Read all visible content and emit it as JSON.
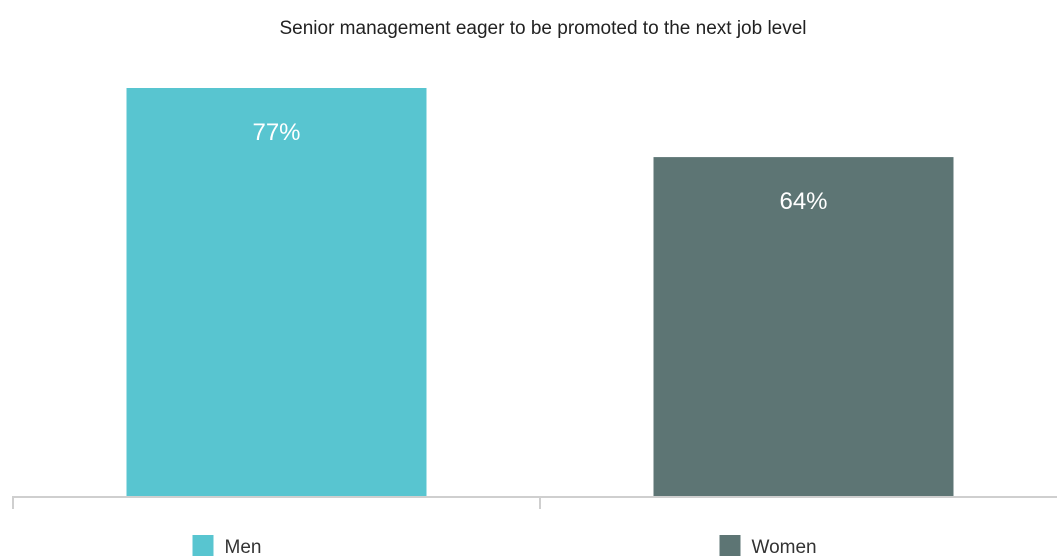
{
  "chart_data": {
    "type": "bar",
    "title": "Senior management eager to be promoted to the next job level",
    "categories": [
      "Men",
      "Women"
    ],
    "values": [
      77,
      64
    ],
    "data_labels": [
      "77%",
      "64%"
    ],
    "colors": [
      "#58c5d0",
      "#5d7574"
    ],
    "ylim": [
      0,
      80
    ],
    "legend_position": "bottom",
    "grid": false,
    "xlabel": "",
    "ylabel": ""
  }
}
